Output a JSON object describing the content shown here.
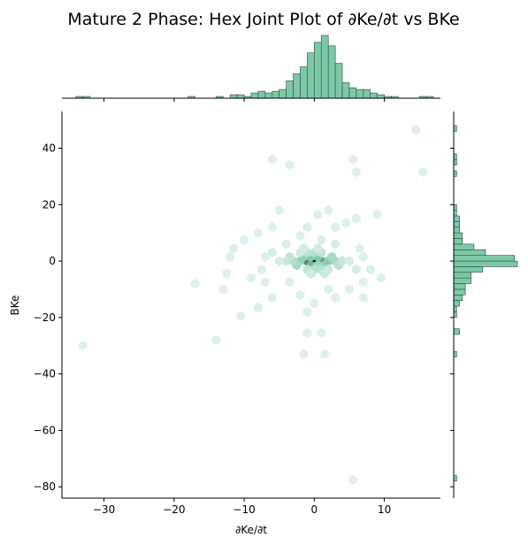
{
  "chart_data": {
    "type": "hexbin-jointplot",
    "title": "Mature 2 Phase: Hex Joint Plot of ∂Ke/∂t vs BKe",
    "xlabel": "∂Ke/∂t",
    "ylabel": "BKe",
    "xlim": [
      -36,
      18
    ],
    "ylim": [
      -84,
      53
    ],
    "x_ticks": [
      -30,
      -20,
      -10,
      0,
      10
    ],
    "y_ticks": [
      40,
      20,
      0,
      -20,
      -40,
      -60,
      -80
    ],
    "x_tick_labels": [
      "−30",
      "−20",
      "−10",
      "0",
      "10"
    ],
    "y_tick_labels": [
      "40",
      "20",
      "0",
      "−20",
      "−40",
      "−60",
      "−80"
    ],
    "colors": {
      "hex_low": "#e6f4ee",
      "hex_high": "#0b0b0b",
      "hist_fill": "#7dc9a7",
      "hist_edge": "#2c4a3d"
    },
    "hexbins": [
      {
        "x": 0,
        "y": 0,
        "level": 1.0
      },
      {
        "x": -1,
        "y": 0,
        "level": 0.7
      },
      {
        "x": 1,
        "y": 0,
        "level": 0.6
      },
      {
        "x": -0.5,
        "y": -1.5,
        "level": 0.55
      },
      {
        "x": 0.5,
        "y": 1.5,
        "level": 0.5
      },
      {
        "x": -1.5,
        "y": 1.5,
        "level": 0.4
      },
      {
        "x": 1.5,
        "y": -1.5,
        "level": 0.4
      },
      {
        "x": 2,
        "y": 0,
        "level": 0.45
      },
      {
        "x": -2,
        "y": 0,
        "level": 0.4
      },
      {
        "x": -2.5,
        "y": -1.5,
        "level": 0.3
      },
      {
        "x": 2.5,
        "y": 1.5,
        "level": 0.3
      },
      {
        "x": 0.5,
        "y": -1.5,
        "level": 0.35
      },
      {
        "x": -0.5,
        "y": 1.5,
        "level": 0.45
      },
      {
        "x": -3,
        "y": 0,
        "level": 0.25
      },
      {
        "x": 3,
        "y": 0,
        "level": 0.3
      },
      {
        "x": 0,
        "y": 3,
        "level": 0.25
      },
      {
        "x": 0,
        "y": -3,
        "level": 0.25
      },
      {
        "x": -1,
        "y": 3,
        "level": 0.2
      },
      {
        "x": 1,
        "y": -3,
        "level": 0.22
      },
      {
        "x": -1,
        "y": -3,
        "level": 0.18
      },
      {
        "x": 1,
        "y": 3,
        "level": 0.18
      },
      {
        "x": -3.5,
        "y": 1.5,
        "level": 0.18
      },
      {
        "x": 3.5,
        "y": -1.5,
        "level": 0.2
      },
      {
        "x": -4,
        "y": 0,
        "level": 0.15
      },
      {
        "x": 4,
        "y": 0,
        "level": 0.15
      },
      {
        "x": -2,
        "y": 3,
        "level": 0.12
      },
      {
        "x": 2,
        "y": -3,
        "level": 0.12
      },
      {
        "x": -1.5,
        "y": 4.5,
        "level": 0.1
      },
      {
        "x": 1.5,
        "y": -4.5,
        "level": 0.12
      },
      {
        "x": 0.5,
        "y": 4.5,
        "level": 0.1
      },
      {
        "x": -0.5,
        "y": -4.5,
        "level": 0.1
      },
      {
        "x": -5,
        "y": 0,
        "level": 0.08
      },
      {
        "x": 5,
        "y": 0,
        "level": 0.08
      },
      {
        "x": -6,
        "y": 3,
        "level": 0.08
      },
      {
        "x": 6,
        "y": -3,
        "level": 0.08
      },
      {
        "x": -4,
        "y": 6,
        "level": 0.06
      },
      {
        "x": 3,
        "y": 6,
        "level": 0.06
      },
      {
        "x": 1,
        "y": 7.5,
        "level": 0.06
      },
      {
        "x": -2,
        "y": 9,
        "level": 0.05
      },
      {
        "x": 3,
        "y": 12,
        "level": 0.05
      },
      {
        "x": -1,
        "y": 12,
        "level": 0.05
      },
      {
        "x": 0.5,
        "y": 16.5,
        "level": 0.04
      },
      {
        "x": 2,
        "y": 18,
        "level": 0.04
      },
      {
        "x": -5,
        "y": 18,
        "level": 0.04
      },
      {
        "x": -6,
        "y": 12,
        "level": 0.04
      },
      {
        "x": 6,
        "y": 15,
        "level": 0.04
      },
      {
        "x": 9,
        "y": 16.5,
        "level": 0.04
      },
      {
        "x": 4.5,
        "y": 13.5,
        "level": 0.04
      },
      {
        "x": -10,
        "y": 7.5,
        "level": 0.04
      },
      {
        "x": -8,
        "y": 10,
        "level": 0.04
      },
      {
        "x": -3.5,
        "y": -7.5,
        "level": 0.05
      },
      {
        "x": 2,
        "y": -10,
        "level": 0.05
      },
      {
        "x": -2,
        "y": -12,
        "level": 0.04
      },
      {
        "x": 0,
        "y": -15,
        "level": 0.04
      },
      {
        "x": -1,
        "y": -18,
        "level": 0.04
      },
      {
        "x": 3,
        "y": -13,
        "level": 0.04
      },
      {
        "x": 5,
        "y": -10,
        "level": 0.04
      },
      {
        "x": 7,
        "y": -13,
        "level": 0.04
      },
      {
        "x": 9.5,
        "y": -6,
        "level": 0.04
      },
      {
        "x": 7,
        "y": -7.5,
        "level": 0.04
      },
      {
        "x": -7,
        "y": -7.5,
        "level": 0.04
      },
      {
        "x": -9,
        "y": -6,
        "level": 0.04
      },
      {
        "x": -12.5,
        "y": -4.5,
        "level": 0.04
      },
      {
        "x": -13,
        "y": -10,
        "level": 0.04
      },
      {
        "x": -8,
        "y": -16.5,
        "level": 0.04
      },
      {
        "x": -6,
        "y": -13,
        "level": 0.04
      },
      {
        "x": -10.5,
        "y": -19.5,
        "level": 0.04
      },
      {
        "x": -17,
        "y": -8,
        "level": 0.04
      },
      {
        "x": -12,
        "y": 1.5,
        "level": 0.04
      },
      {
        "x": -11.5,
        "y": 4.5,
        "level": 0.04
      },
      {
        "x": -7,
        "y": 1.5,
        "level": 0.05
      },
      {
        "x": -7.5,
        "y": -3,
        "level": 0.05
      },
      {
        "x": 7,
        "y": 1.5,
        "level": 0.05
      },
      {
        "x": 8,
        "y": -3,
        "level": 0.05
      },
      {
        "x": 6.5,
        "y": 4.5,
        "level": 0.04
      },
      {
        "x": -6,
        "y": 36,
        "level": 0.04
      },
      {
        "x": -3.5,
        "y": 34,
        "level": 0.04
      },
      {
        "x": 5.5,
        "y": 36,
        "level": 0.04
      },
      {
        "x": 6,
        "y": 31.5,
        "level": 0.04
      },
      {
        "x": 14.5,
        "y": 46.5,
        "level": 0.04
      },
      {
        "x": 15.5,
        "y": 31.5,
        "level": 0.04
      },
      {
        "x": -1,
        "y": -25.5,
        "level": 0.04
      },
      {
        "x": 1,
        "y": -25.5,
        "level": 0.04
      },
      {
        "x": -14,
        "y": -28,
        "level": 0.04
      },
      {
        "x": -33,
        "y": -30,
        "level": 0.04
      },
      {
        "x": -1.5,
        "y": -33,
        "level": 0.04
      },
      {
        "x": 1.5,
        "y": -33,
        "level": 0.04
      },
      {
        "x": 5.5,
        "y": -77.5,
        "level": 0.04
      }
    ],
    "x_hist": {
      "bin_edges": [
        -34,
        -33,
        -32,
        -31,
        -30,
        -29,
        -28,
        -27,
        -26,
        -25,
        -24,
        -23,
        -22,
        -21,
        -20,
        -19,
        -18,
        -17,
        -16,
        -15,
        -14,
        -13,
        -12,
        -11,
        -10,
        -9,
        -8,
        -7,
        -6,
        -5,
        -4,
        -3,
        -2,
        -1,
        0,
        1,
        2,
        3,
        4,
        5,
        6,
        7,
        8,
        9,
        10,
        11,
        12,
        13,
        14,
        15,
        16,
        17
      ],
      "counts": [
        1,
        1,
        0,
        0,
        0,
        0,
        0,
        0,
        0,
        0,
        0,
        0,
        0,
        0,
        0,
        0,
        1,
        0,
        0,
        0,
        1,
        0,
        2,
        2,
        1,
        3,
        4,
        3,
        4,
        5,
        10,
        14,
        18,
        26,
        32,
        36,
        30,
        20,
        9,
        6,
        5,
        5,
        3,
        2,
        1,
        1,
        0,
        0,
        0,
        1,
        1
      ]
    },
    "y_hist": {
      "bin_edges": [
        -79,
        -78,
        -77,
        -76,
        -75,
        -74,
        -73,
        -72,
        -71,
        -70,
        -69,
        -68,
        -67,
        -66,
        -65,
        -64,
        -63,
        -62,
        -61,
        -60,
        -59,
        -58,
        -57,
        -56,
        -55,
        -54,
        -53,
        -52,
        -51,
        -50,
        -49,
        -48,
        -47,
        -46,
        -45,
        -44,
        -43,
        -42,
        -41,
        -40,
        -39,
        -38,
        -37,
        -36,
        -35,
        -34,
        -33,
        -32,
        -31,
        -30,
        -29,
        -28,
        -27,
        -26,
        -25,
        -24,
        -23,
        -22,
        -21,
        -20,
        -19,
        -18,
        -17,
        -16,
        -15,
        -14,
        -13,
        -12,
        -11,
        -10,
        -9,
        -8,
        -7,
        -6,
        -5,
        -4,
        -3,
        -2,
        -1,
        0,
        1,
        2,
        3,
        4,
        5,
        6,
        7,
        8,
        9,
        10,
        11,
        12,
        13,
        14,
        15,
        16,
        17,
        18,
        19,
        20,
        21,
        22,
        23,
        24,
        25,
        26,
        27,
        28,
        29,
        30,
        31,
        32,
        33,
        34,
        35,
        36,
        37,
        38,
        39,
        40,
        41,
        42,
        43,
        44,
        45,
        46,
        47,
        48,
        49
      ],
      "binned": [
        {
          "y0": -78,
          "y1": -76,
          "count": 1
        },
        {
          "y0": -34,
          "y1": -32,
          "count": 1
        },
        {
          "y0": -26,
          "y1": -24,
          "count": 2
        },
        {
          "y0": -20,
          "y1": -18,
          "count": 1
        },
        {
          "y0": -18,
          "y1": -16,
          "count": 1
        },
        {
          "y0": -16,
          "y1": -14,
          "count": 2
        },
        {
          "y0": -14,
          "y1": -12,
          "count": 3
        },
        {
          "y0": -12,
          "y1": -10,
          "count": 4
        },
        {
          "y0": -10,
          "y1": -8,
          "count": 4
        },
        {
          "y0": -8,
          "y1": -6,
          "count": 6
        },
        {
          "y0": -6,
          "y1": -4,
          "count": 6
        },
        {
          "y0": -4,
          "y1": -2,
          "count": 10
        },
        {
          "y0": -2,
          "y1": 0,
          "count": 22
        },
        {
          "y0": 0,
          "y1": 2,
          "count": 21
        },
        {
          "y0": 2,
          "y1": 4,
          "count": 11
        },
        {
          "y0": 4,
          "y1": 6,
          "count": 7
        },
        {
          "y0": 6,
          "y1": 8,
          "count": 3
        },
        {
          "y0": 8,
          "y1": 10,
          "count": 3
        },
        {
          "y0": 10,
          "y1": 12,
          "count": 2
        },
        {
          "y0": 12,
          "y1": 14,
          "count": 2
        },
        {
          "y0": 14,
          "y1": 16,
          "count": 2
        },
        {
          "y0": 16,
          "y1": 18,
          "count": 1
        },
        {
          "y0": 18,
          "y1": 20,
          "count": 1
        },
        {
          "y0": 30,
          "y1": 32,
          "count": 1
        },
        {
          "y0": 34,
          "y1": 36,
          "count": 1
        },
        {
          "y0": 36,
          "y1": 38,
          "count": 1
        },
        {
          "y0": 46,
          "y1": 48,
          "count": 1
        }
      ]
    }
  }
}
